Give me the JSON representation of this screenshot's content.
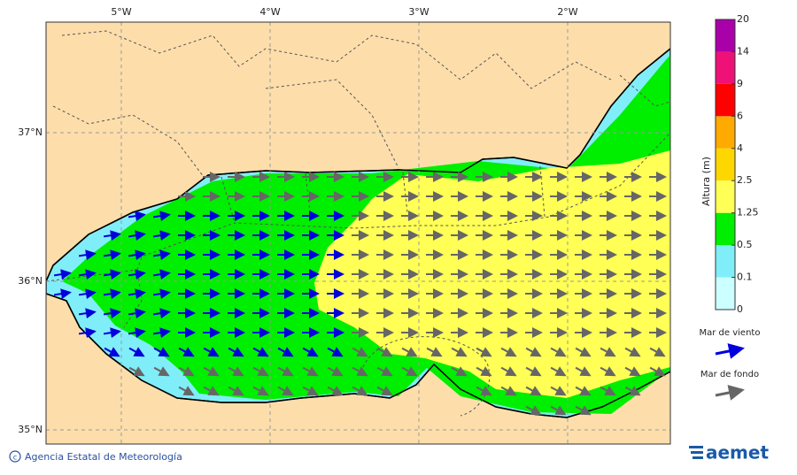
{
  "map": {
    "lon_labels": [
      "5°W",
      "4°W",
      "3°W",
      "2°W"
    ],
    "lat_labels": [
      "37°N",
      "36°N",
      "35°N"
    ],
    "colorbar": {
      "label": "Altura (m)",
      "levels": [
        0,
        0.1,
        0.5,
        1.25,
        2.5,
        4,
        6,
        9,
        14,
        20
      ],
      "colors": [
        "#ccffff",
        "#80eef8",
        "#00ee00",
        "#ffff55",
        "#ffd700",
        "#ffaa00",
        "#ff0000",
        "#ee1177",
        "#aa00aa"
      ]
    },
    "legend": [
      {
        "label": "Mar de viento",
        "color": "#0000dd"
      },
      {
        "label": "Mar de fondo",
        "color": "#666666"
      }
    ],
    "credit": "Agencia Estatal de Meteorología",
    "logo": "aemet"
  }
}
